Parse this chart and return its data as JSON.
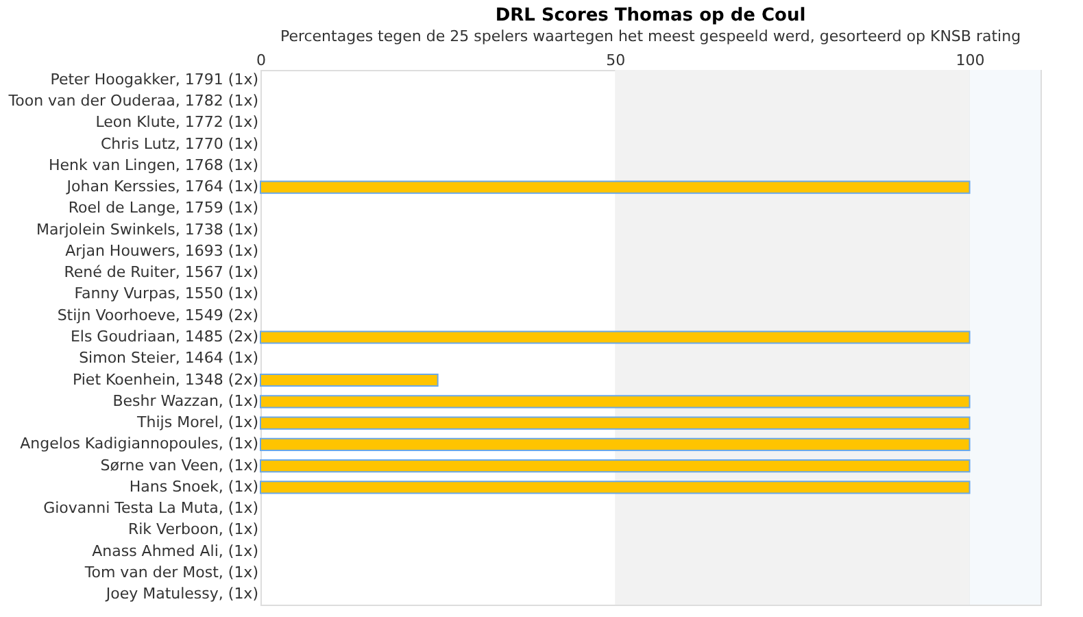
{
  "chart_data": {
    "type": "bar",
    "orientation": "horizontal",
    "title": "DRL Scores Thomas op de Coul",
    "subtitle": "Percentages tegen de 25 spelers waartegen het meest gespeeld werd, gesorteerd op KNSB rating",
    "categories": [
      "Peter Hoogakker, 1791 (1x)",
      "Toon van der Ouderaa, 1782 (1x)",
      "Leon Klute, 1772 (1x)",
      "Chris Lutz, 1770 (1x)",
      "Henk van Lingen, 1768 (1x)",
      "Johan Kerssies, 1764 (1x)",
      "Roel de Lange, 1759 (1x)",
      "Marjolein Swinkels, 1738 (1x)",
      "Arjan Houwers, 1693 (1x)",
      "René de Ruiter, 1567 (1x)",
      "Fanny Vurpas, 1550 (1x)",
      "Stijn Voorhoeve, 1549 (2x)",
      "Els Goudriaan, 1485 (2x)",
      "Simon Steier, 1464 (1x)",
      "Piet Koenhein, 1348 (2x)",
      "Beshr Wazzan,  (1x)",
      "Thijs Morel,  (1x)",
      "Angelos Kadigiannopoules,  (1x)",
      "Sørne van Veen,  (1x)",
      "Hans Snoek,  (1x)",
      "Giovanni Testa La Muta,  (1x)",
      "Rik Verboon,  (1x)",
      "Anass Ahmed Ali,  (1x)",
      "Tom van der Most,  (1x)",
      "Joey Matulessy,  (1x)"
    ],
    "values": [
      0,
      0,
      0,
      0,
      0,
      100,
      0,
      0,
      0,
      0,
      0,
      0,
      100,
      0,
      25,
      100,
      100,
      100,
      100,
      100,
      0,
      0,
      0,
      0,
      0
    ],
    "color": "#ffc400",
    "xlim": [
      0,
      110
    ],
    "xticks": [
      0,
      50,
      100
    ],
    "grid": "x",
    "bands": [
      {
        "axis": "x",
        "from": 50,
        "to": 100,
        "color": "#f2f2f2"
      },
      {
        "axis": "x",
        "from": 100,
        "to": 110,
        "color": "#f5f9fc"
      }
    ]
  }
}
